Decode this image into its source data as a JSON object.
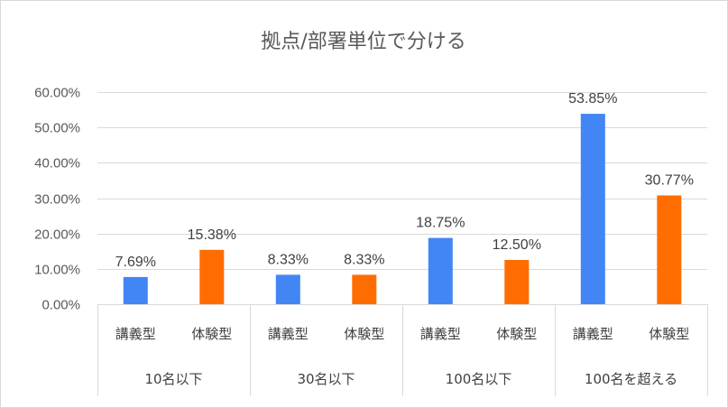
{
  "chart_data": {
    "type": "bar",
    "title": "拠点/部署単位で分ける",
    "groups": [
      "10名以下",
      "30名以下",
      "100名以下",
      "100名を超える"
    ],
    "categories": [
      "講義型",
      "体験型",
      "講義型",
      "体験型",
      "講義型",
      "体験型",
      "講義型",
      "体験型"
    ],
    "values": [
      7.69,
      15.38,
      8.33,
      8.33,
      18.75,
      12.5,
      53.85,
      30.77
    ],
    "data_labels": [
      "7.69%",
      "15.38%",
      "8.33%",
      "8.33%",
      "18.75%",
      "12.50%",
      "53.85%",
      "30.77%"
    ],
    "bar_colors": [
      "#4285f4",
      "#ff6d01",
      "#4285f4",
      "#ff6d01",
      "#4285f4",
      "#ff6d01",
      "#4285f4",
      "#ff6d01"
    ],
    "ylim": [
      0,
      60
    ],
    "yticks": [
      0,
      10,
      20,
      30,
      40,
      50,
      60
    ],
    "ytick_labels": [
      "0.00%",
      "10.00%",
      "20.00%",
      "30.00%",
      "40.00%",
      "50.00%",
      "60.00%"
    ],
    "grid": true,
    "legend": "none"
  }
}
